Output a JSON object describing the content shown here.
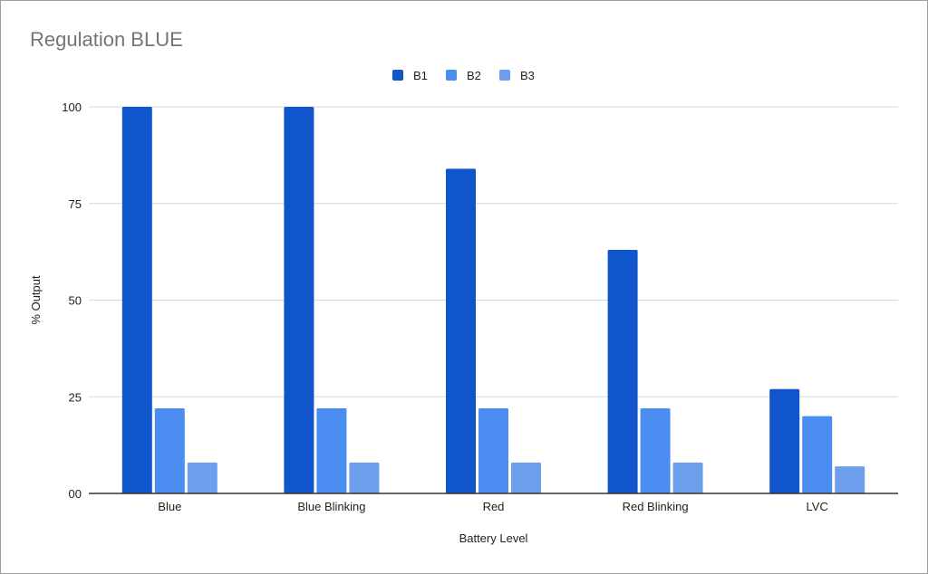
{
  "chart_data": {
    "type": "bar",
    "title": "Regulation BLUE",
    "xlabel": "Battery Level",
    "ylabel": "% Output",
    "categories": [
      "Blue",
      "Blue Blinking",
      "Red",
      "Red Blinking",
      "LVC"
    ],
    "series": [
      {
        "name": "B1",
        "color": "#1155cc",
        "values": [
          100,
          100,
          84,
          63,
          27
        ]
      },
      {
        "name": "B2",
        "color": "#4a8cf0",
        "values": [
          22,
          22,
          22,
          22,
          20
        ]
      },
      {
        "name": "B3",
        "color": "#6d9eeb",
        "values": [
          8,
          8,
          8,
          8,
          7
        ]
      }
    ],
    "ylim": [
      0,
      100
    ],
    "yticks": [
      {
        "value": 0,
        "label": "00"
      },
      {
        "value": 25,
        "label": "25"
      },
      {
        "value": 50,
        "label": "50"
      },
      {
        "value": 75,
        "label": "75"
      },
      {
        "value": 100,
        "label": "100"
      }
    ],
    "grid": true,
    "legend_position": "top-center"
  }
}
